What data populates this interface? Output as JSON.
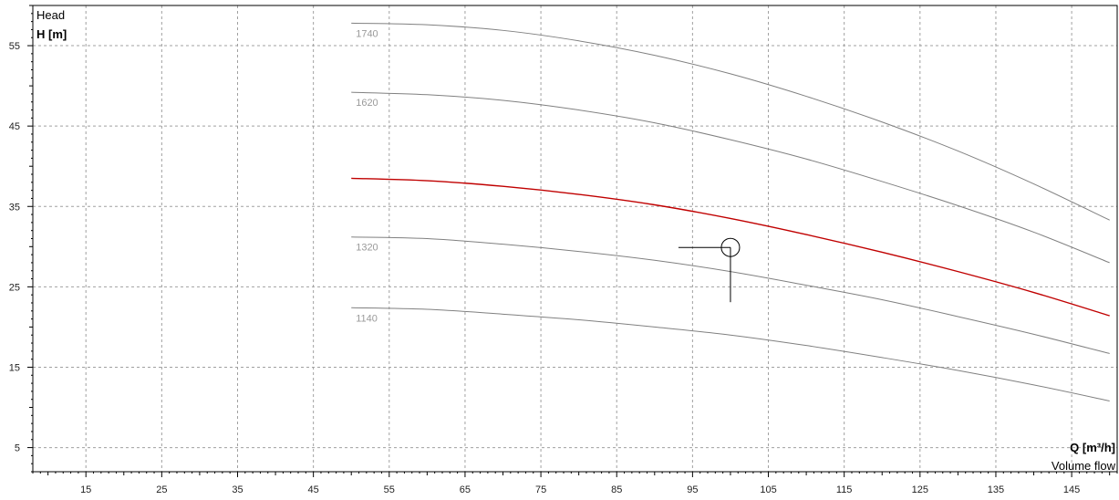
{
  "chart_data": {
    "type": "line",
    "y_axis": {
      "title": "Head",
      "label": "H [m]",
      "range": [
        2,
        60
      ],
      "ticks": [
        5,
        15,
        25,
        35,
        45,
        55
      ],
      "minor_step": 1
    },
    "x_axis": {
      "label": "Q [m³/h]",
      "title": "Volume flow",
      "range": [
        8,
        151
      ],
      "ticks": [
        15,
        25,
        35,
        45,
        55,
        65,
        75,
        85,
        95,
        105,
        115,
        125,
        135,
        145
      ],
      "minor_step": 1
    },
    "grid": true,
    "colors": {
      "curve": "#808080",
      "highlight": "#c00000",
      "grid": "#a0a0a0",
      "marker": "#000000"
    },
    "series": [
      {
        "name": "1740",
        "highlight": false,
        "points": [
          [
            50,
            57.8
          ],
          [
            60,
            57.6
          ],
          [
            70,
            56.9
          ],
          [
            80,
            55.6
          ],
          [
            90,
            53.8
          ],
          [
            100,
            51.5
          ],
          [
            110,
            48.7
          ],
          [
            120,
            45.5
          ],
          [
            130,
            41.9
          ],
          [
            140,
            37.8
          ],
          [
            150,
            33.3
          ]
        ]
      },
      {
        "name": "1620",
        "highlight": false,
        "points": [
          [
            50,
            49.2
          ],
          [
            60,
            48.9
          ],
          [
            70,
            48.2
          ],
          [
            80,
            47.0
          ],
          [
            90,
            45.4
          ],
          [
            100,
            43.3
          ],
          [
            110,
            40.9
          ],
          [
            120,
            38.1
          ],
          [
            130,
            35.1
          ],
          [
            140,
            31.8
          ],
          [
            150,
            28.0
          ]
        ]
      },
      {
        "name": "",
        "highlight": true,
        "points": [
          [
            50,
            38.5
          ],
          [
            60,
            38.2
          ],
          [
            70,
            37.5
          ],
          [
            80,
            36.5
          ],
          [
            90,
            35.2
          ],
          [
            100,
            33.5
          ],
          [
            110,
            31.5
          ],
          [
            120,
            29.3
          ],
          [
            130,
            26.9
          ],
          [
            140,
            24.3
          ],
          [
            150,
            21.4
          ]
        ]
      },
      {
        "name": "1320",
        "highlight": false,
        "points": [
          [
            50,
            31.2
          ],
          [
            60,
            31.0
          ],
          [
            70,
            30.3
          ],
          [
            80,
            29.4
          ],
          [
            90,
            28.3
          ],
          [
            100,
            26.9
          ],
          [
            110,
            25.2
          ],
          [
            120,
            23.4
          ],
          [
            130,
            21.3
          ],
          [
            140,
            19.1
          ],
          [
            150,
            16.7
          ]
        ]
      },
      {
        "name": "1140",
        "highlight": false,
        "points": [
          [
            50,
            22.4
          ],
          [
            60,
            22.2
          ],
          [
            70,
            21.6
          ],
          [
            80,
            20.9
          ],
          [
            90,
            20.0
          ],
          [
            100,
            19.0
          ],
          [
            110,
            17.7
          ],
          [
            120,
            16.2
          ],
          [
            130,
            14.6
          ],
          [
            140,
            12.8
          ],
          [
            150,
            10.8
          ]
        ]
      }
    ],
    "duty_point": {
      "q": 100,
      "h": 29.9
    }
  }
}
